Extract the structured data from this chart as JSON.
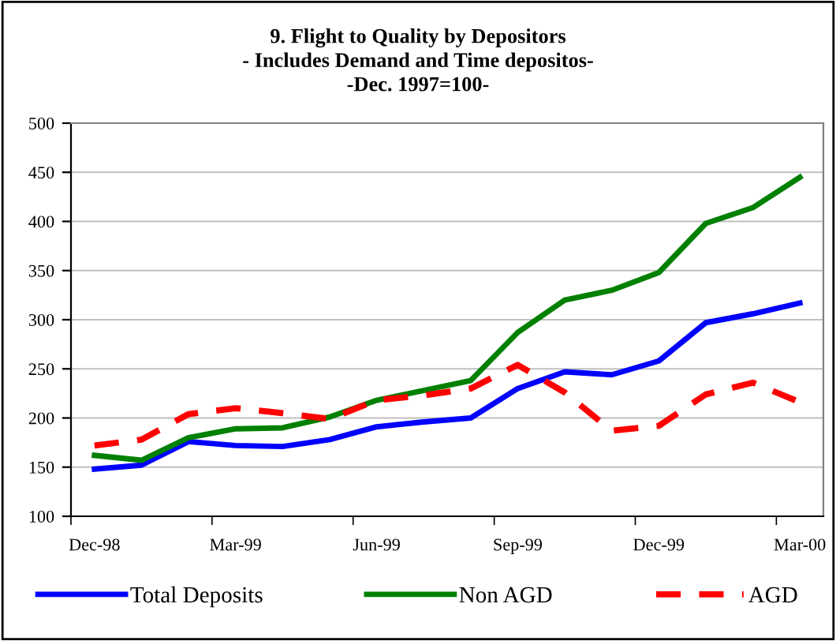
{
  "chart_data": {
    "type": "line",
    "title": "9. Flight to Quality by Depositors\n- Includes Demand and Time depositos-\n-Dec. 1997=100-",
    "categories": [
      "Dec-98",
      null,
      null,
      "Mar-99",
      null,
      null,
      "Jun-99",
      null,
      null,
      "Sep-99",
      null,
      null,
      "Dec-99",
      null,
      null,
      "Mar-00"
    ],
    "series": [
      {
        "name": "Total Deposits",
        "color": "#0000ff",
        "line_style": "solid",
        "values": [
          148,
          152,
          176,
          172,
          171,
          178,
          191,
          196,
          200,
          230,
          247,
          244,
          258,
          297,
          306,
          317
        ]
      },
      {
        "name": "Non AGD",
        "color": "#008000",
        "line_style": "solid",
        "values": [
          162,
          157,
          180,
          189,
          190,
          201,
          218,
          228,
          238,
          287,
          320,
          330,
          348,
          398,
          414,
          445
        ]
      },
      {
        "name": "AGD",
        "color": "#ff0000",
        "line_style": "dashed",
        "values": [
          172,
          178,
          204,
          210,
          205,
          199,
          218,
          223,
          230,
          254,
          226,
          187,
          192,
          224,
          236,
          216
        ]
      }
    ],
    "ylim": [
      100,
      500
    ],
    "yticks": [
      100,
      150,
      200,
      250,
      300,
      350,
      400,
      450,
      500
    ],
    "grid": "y",
    "legend": "bottom",
    "marker": "none"
  }
}
